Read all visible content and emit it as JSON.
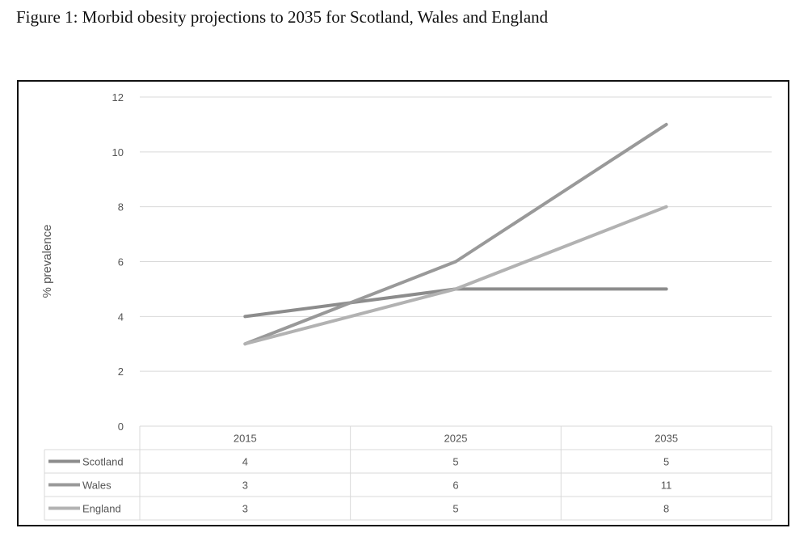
{
  "figure_title": "Figure 1: Morbid obesity projections to 2035 for Scotland, Wales and England",
  "chart_data": {
    "type": "line",
    "title": "",
    "xlabel": "",
    "ylabel": "% prevalence",
    "categories": [
      "2015",
      "2025",
      "2035"
    ],
    "ylim": [
      0,
      12
    ],
    "yticks": [
      0,
      2,
      4,
      6,
      8,
      10,
      12
    ],
    "grid": true,
    "legend": "data table below chart",
    "series": [
      {
        "name": "Scotland",
        "values": [
          4,
          5,
          5
        ],
        "color": "#8c8c8c"
      },
      {
        "name": "Wales",
        "values": [
          3,
          6,
          11
        ],
        "color": "#999999"
      },
      {
        "name": "England",
        "values": [
          3,
          5,
          8
        ],
        "color": "#b2b2b2"
      }
    ]
  }
}
